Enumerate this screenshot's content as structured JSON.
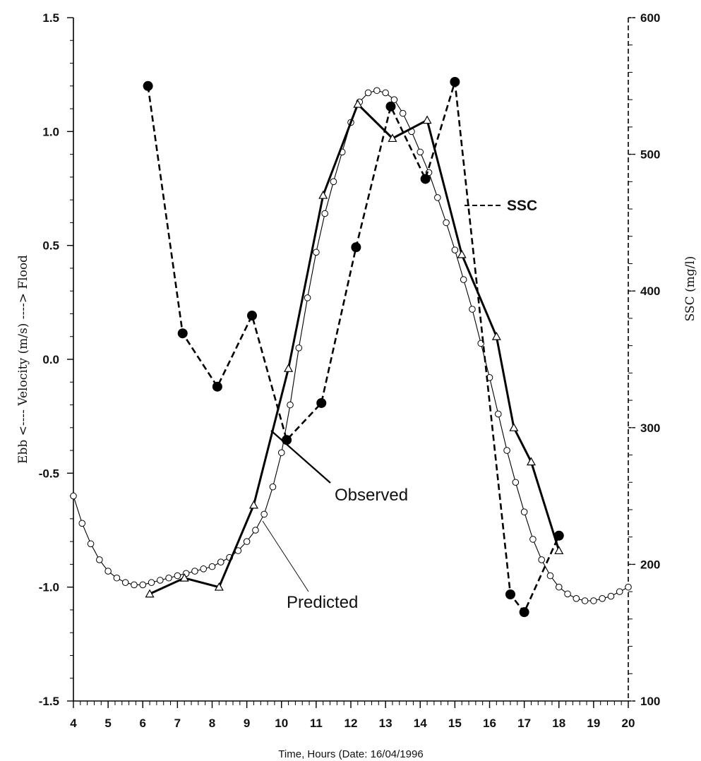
{
  "chart_data": {
    "type": "line",
    "title": "",
    "xlabel": "Time, Hours (Date: 16/04/1996",
    "ylabel_left": "Ebb <---- Velocity (m/s) ----> Flood",
    "ylabel_right": "SSC (mg/l)",
    "xlim": [
      4,
      20
    ],
    "ylim_left": [
      -1.5,
      1.5
    ],
    "ylim_right": [
      100,
      600
    ],
    "x_ticks": [
      "4",
      "5",
      "6",
      "7",
      "8",
      "9",
      "10",
      "11",
      "12",
      "13",
      "14",
      "15",
      "16",
      "17",
      "18",
      "19",
      "20"
    ],
    "y_left_ticks": [
      "1.5",
      "1.0",
      "0.5",
      "0.0",
      "-0.5",
      "-1.0",
      "-1.5"
    ],
    "y_right_ticks": [
      "600",
      "500",
      "400",
      "300",
      "200",
      "100"
    ],
    "annotations": {
      "observed": "Observed",
      "predicted": "Predicted",
      "ssc": "SSC"
    },
    "series": [
      {
        "key": "observed",
        "axis": "left",
        "marker": "triangle",
        "x": [
          6.2,
          7.2,
          8.2,
          9.2,
          10.2,
          11.2,
          12.2,
          13.2,
          14.2,
          15.2,
          16.2,
          16.7,
          17.2,
          18.0
        ],
        "values": [
          -1.03,
          -0.96,
          -1.0,
          -0.64,
          -0.04,
          0.72,
          1.12,
          0.97,
          1.05,
          0.46,
          0.1,
          -0.3,
          -0.45,
          -0.84
        ]
      },
      {
        "key": "predicted",
        "axis": "left",
        "marker": "circle-open",
        "x": [
          4.0,
          4.25,
          4.5,
          4.75,
          5.0,
          5.25,
          5.5,
          5.75,
          6.0,
          6.25,
          6.5,
          6.75,
          7.0,
          7.25,
          7.5,
          7.75,
          8.0,
          8.25,
          8.5,
          8.75,
          9.0,
          9.25,
          9.5,
          9.75,
          10.0,
          10.25,
          10.5,
          10.75,
          11.0,
          11.25,
          11.5,
          11.75,
          12.0,
          12.25,
          12.5,
          12.75,
          13.0,
          13.25,
          13.5,
          13.75,
          14.0,
          14.25,
          14.5,
          14.75,
          15.0,
          15.25,
          15.5,
          15.75,
          16.0,
          16.25,
          16.5,
          16.75,
          17.0,
          17.25,
          17.5,
          17.75,
          18.0,
          18.25,
          18.5,
          18.75,
          19.0,
          19.25,
          19.5,
          19.75,
          20.0
        ],
        "values": [
          -0.6,
          -0.72,
          -0.81,
          -0.88,
          -0.93,
          -0.96,
          -0.98,
          -0.99,
          -0.99,
          -0.98,
          -0.97,
          -0.96,
          -0.95,
          -0.94,
          -0.93,
          -0.92,
          -0.91,
          -0.89,
          -0.87,
          -0.84,
          -0.8,
          -0.75,
          -0.68,
          -0.56,
          -0.41,
          -0.2,
          0.05,
          0.27,
          0.47,
          0.64,
          0.78,
          0.91,
          1.04,
          1.13,
          1.17,
          1.18,
          1.17,
          1.14,
          1.08,
          1.0,
          0.91,
          0.82,
          0.71,
          0.6,
          0.48,
          0.35,
          0.22,
          0.07,
          -0.08,
          -0.24,
          -0.4,
          -0.54,
          -0.67,
          -0.79,
          -0.88,
          -0.95,
          -1.0,
          -1.03,
          -1.05,
          -1.06,
          -1.06,
          -1.05,
          -1.04,
          -1.02,
          -1.0
        ]
      },
      {
        "key": "ssc",
        "axis": "right",
        "marker": "circle-filled",
        "x": [
          6.15,
          7.15,
          8.15,
          9.15,
          10.15,
          11.15,
          12.15,
          13.15,
          14.15,
          15.0,
          16.6,
          17.0,
          18.0
        ],
        "values": [
          550,
          369,
          330,
          382,
          291,
          318,
          432,
          535,
          482,
          553,
          178,
          165,
          221
        ]
      }
    ]
  }
}
